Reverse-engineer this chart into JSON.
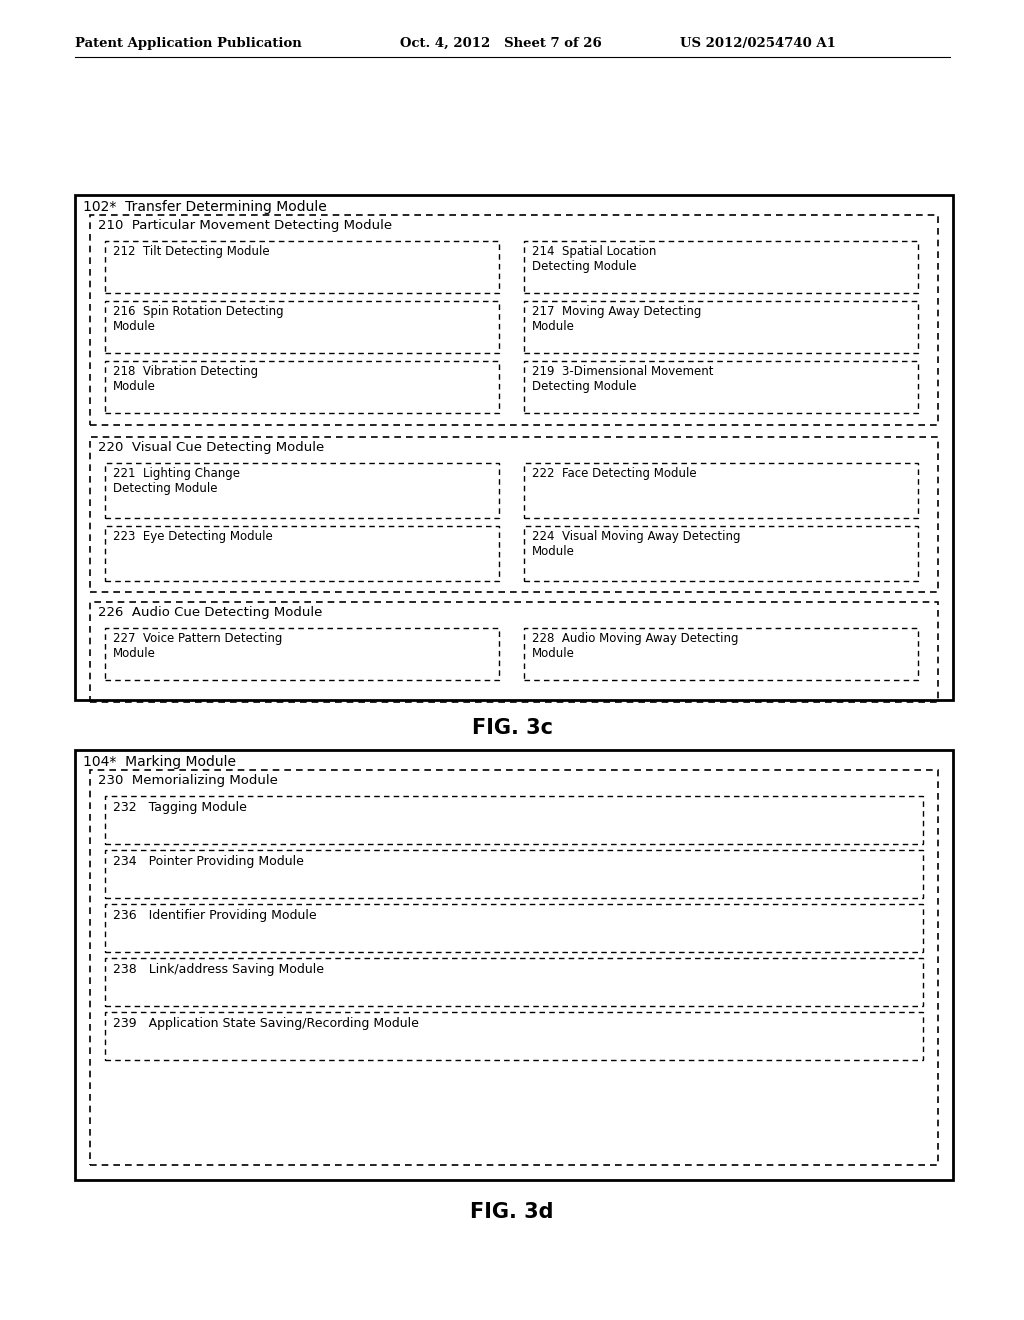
{
  "bg_color": "#ffffff",
  "header_left": "Patent Application Publication",
  "header_mid": "Oct. 4, 2012   Sheet 7 of 26",
  "header_right": "US 2012/0254740 A1",
  "fig3c_label": "FIG. 3c",
  "fig3d_label": "FIG. 3d",
  "fig3c": {
    "outer_label": "102*  Transfer Determining Module",
    "sections": [
      {
        "label": "210  Particular Movement Detecting Module",
        "children_left": [
          {
            "label": "212  Tilt Detecting Module"
          },
          {
            "label": "216  Spin Rotation Detecting\nModule"
          },
          {
            "label": "218  Vibration Detecting\nModule"
          }
        ],
        "children_right": [
          {
            "label": "214  Spatial Location\nDetecting Module"
          },
          {
            "label": "217  Moving Away Detecting\nModule"
          },
          {
            "label": "219  3-Dimensional Movement\nDetecting Module"
          }
        ]
      },
      {
        "label": "220  Visual Cue Detecting Module",
        "children_left": [
          {
            "label": "221  Lighting Change\nDetecting Module"
          },
          {
            "label": "223  Eye Detecting Module"
          }
        ],
        "children_right": [
          {
            "label": "222  Face Detecting Module"
          },
          {
            "label": "224  Visual Moving Away Detecting\nModule"
          }
        ]
      },
      {
        "label": "226  Audio Cue Detecting Module",
        "children_left": [
          {
            "label": "227  Voice Pattern Detecting\nModule"
          }
        ],
        "children_right": [
          {
            "label": "228  Audio Moving Away Detecting\nModule"
          }
        ]
      }
    ]
  },
  "fig3d": {
    "outer_label": "104*  Marking Module",
    "section_label": "230  Memorializing Module",
    "items": [
      "232   Tagging Module",
      "234   Pointer Providing Module",
      "236   Identifier Providing Module",
      "238   Link/address Saving Module",
      "239   Application State Saving/Recording Module"
    ]
  }
}
